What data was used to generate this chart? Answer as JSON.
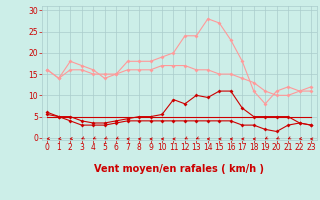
{
  "x": [
    0,
    1,
    2,
    3,
    4,
    5,
    6,
    7,
    8,
    9,
    10,
    11,
    12,
    13,
    14,
    15,
    16,
    17,
    18,
    19,
    20,
    21,
    22,
    23
  ],
  "rafales": [
    16,
    14,
    18,
    17,
    16,
    14,
    15,
    18,
    18,
    18,
    19,
    20,
    24,
    24,
    28,
    27,
    23,
    18,
    11,
    8,
    11,
    12,
    11,
    12
  ],
  "moyen_pink": [
    16,
    14,
    16,
    16,
    15,
    15,
    15,
    16,
    16,
    16,
    17,
    17,
    17,
    16,
    16,
    15,
    15,
    14,
    13,
    11,
    10,
    10,
    11,
    11
  ],
  "moyen_dark1": [
    6,
    5,
    5,
    4,
    3.5,
    3.5,
    4,
    4.5,
    5,
    5,
    5.5,
    9,
    8,
    10,
    9.5,
    11,
    11,
    7,
    5,
    5,
    5,
    5,
    3.5,
    3
  ],
  "moyen_dark2": [
    5.5,
    5,
    4,
    3,
    3,
    3,
    3.5,
    4,
    4,
    4,
    4,
    4,
    4,
    4,
    4,
    4,
    4,
    3,
    3,
    2,
    1.5,
    3,
    3.5,
    3
  ],
  "flat_line": [
    5,
    5,
    5,
    5,
    5,
    5,
    5,
    5,
    5,
    5,
    5,
    5,
    5,
    5,
    5,
    5,
    5,
    5,
    5,
    5,
    5,
    5,
    5,
    5
  ],
  "bg_color": "#cceee8",
  "grid_color": "#aacccc",
  "line_color_light": "#ff9999",
  "line_color_dark": "#cc0000",
  "xlabel": "Vent moyen/en rafales ( km/h )",
  "xlabel_color": "#cc0000",
  "xlabel_fontsize": 7,
  "yticks": [
    0,
    5,
    10,
    15,
    20,
    25,
    30
  ],
  "xticks": [
    0,
    1,
    2,
    3,
    4,
    5,
    6,
    7,
    8,
    9,
    10,
    11,
    12,
    13,
    14,
    15,
    16,
    17,
    18,
    19,
    20,
    21,
    22,
    23
  ],
  "tick_label_color": "#cc0000",
  "tick_label_fontsize": 5.5,
  "ylim": [
    -0.5,
    31
  ],
  "xlim": [
    -0.5,
    23.5
  ],
  "arrow_color": "#cc0000",
  "arrow_angles": [
    225,
    225,
    225,
    202,
    202,
    202,
    202,
    270,
    270,
    270,
    270,
    270,
    202,
    202,
    270,
    270,
    270,
    270,
    270,
    202,
    202,
    202,
    225,
    270
  ]
}
